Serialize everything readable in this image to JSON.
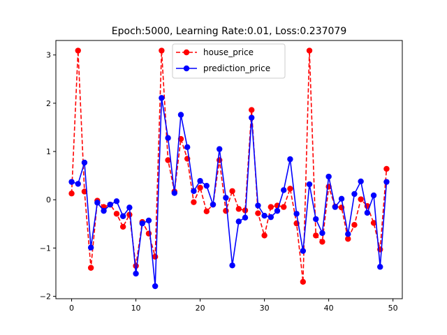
{
  "chart_data": {
    "type": "line",
    "title": "Epoch:5000, Learning Rate:0.01, Loss:0.237079",
    "xlabel": "",
    "ylabel": "",
    "xlim": [
      -2.45,
      51.45
    ],
    "ylim": [
      -2.05,
      3.3
    ],
    "xticks": [
      0,
      10,
      20,
      30,
      40,
      50
    ],
    "yticks": [
      -2,
      -1,
      0,
      1,
      2,
      3
    ],
    "grid": false,
    "legend_position": "upper center",
    "x": [
      0,
      1,
      2,
      3,
      4,
      5,
      6,
      7,
      8,
      9,
      10,
      11,
      12,
      13,
      14,
      15,
      16,
      17,
      18,
      19,
      20,
      21,
      22,
      23,
      24,
      25,
      26,
      27,
      28,
      29,
      30,
      31,
      32,
      33,
      34,
      35,
      36,
      37,
      38,
      39,
      40,
      41,
      42,
      43,
      44,
      45,
      46,
      47,
      48,
      49
    ],
    "series": [
      {
        "name": "house_price",
        "color": "#ff0000",
        "line_style": "dashed",
        "marker": "circle",
        "values": [
          0.13,
          3.09,
          0.17,
          -1.41,
          -0.02,
          -0.15,
          -0.1,
          -0.29,
          -0.56,
          -0.31,
          -1.37,
          -0.46,
          -0.7,
          -1.18,
          3.09,
          0.82,
          0.17,
          1.26,
          0.85,
          -0.05,
          0.25,
          -0.24,
          -0.1,
          0.82,
          -0.23,
          0.18,
          -0.19,
          -0.22,
          1.86,
          -0.28,
          -0.74,
          -0.15,
          -0.12,
          -0.15,
          0.23,
          -0.49,
          -1.7,
          3.09,
          -0.74,
          -0.87,
          0.27,
          -0.14,
          -0.16,
          -0.81,
          -0.52,
          0.01,
          -0.13,
          -0.48,
          -1.03,
          0.64
        ]
      },
      {
        "name": "prediction_price",
        "color": "#0000ff",
        "line_style": "solid",
        "marker": "circle",
        "values": [
          0.37,
          0.33,
          0.77,
          -0.99,
          -0.06,
          -0.23,
          -0.1,
          -0.03,
          -0.34,
          -0.16,
          -1.53,
          -0.49,
          -0.43,
          -1.79,
          2.11,
          1.28,
          0.14,
          1.76,
          1.09,
          0.18,
          0.39,
          0.29,
          -0.1,
          1.05,
          0.04,
          -1.36,
          -0.45,
          -0.37,
          1.7,
          -0.12,
          -0.33,
          -0.36,
          -0.23,
          0.2,
          0.84,
          -0.29,
          -1.06,
          0.32,
          -0.4,
          -0.69,
          0.48,
          -0.15,
          0.02,
          -0.71,
          0.12,
          0.38,
          -0.27,
          0.09,
          -1.39,
          0.37
        ]
      }
    ]
  }
}
